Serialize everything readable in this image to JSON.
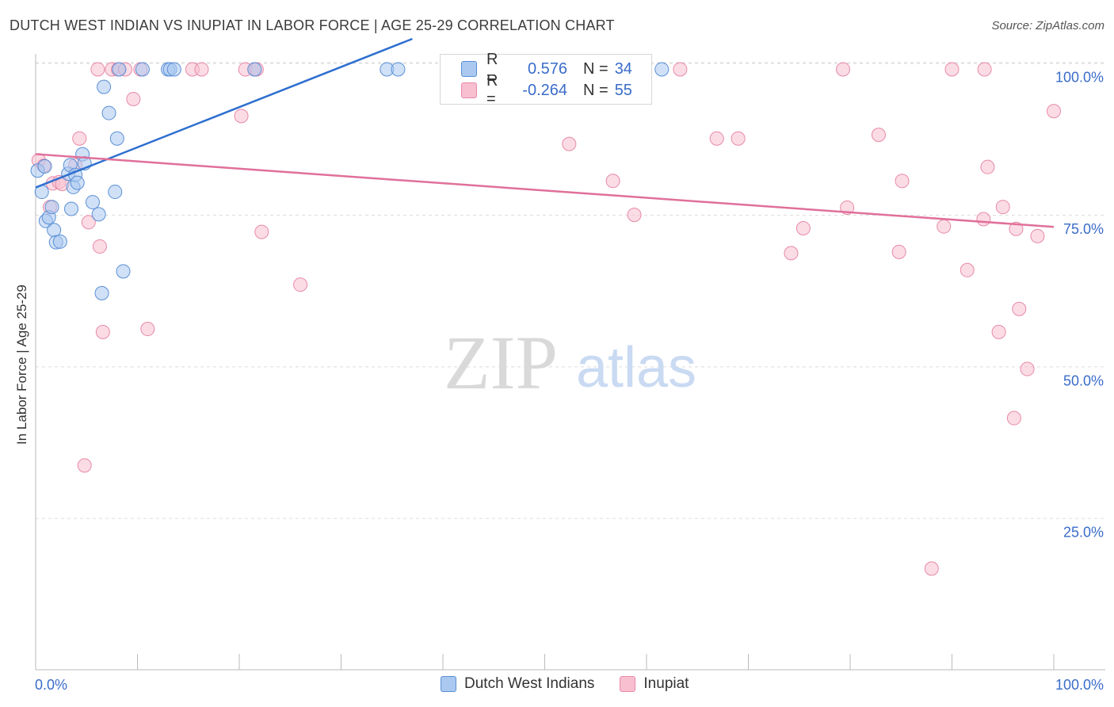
{
  "title": "DUTCH WEST INDIAN VS INUPIAT IN LABOR FORCE | AGE 25-29 CORRELATION CHART",
  "source": "Source: ZipAtlas.com",
  "watermark": {
    "zip": "ZIP",
    "atlas": "atlas"
  },
  "legend": {
    "series1": {
      "r_label": "R =",
      "r_value": "0.576",
      "n_label": "N =",
      "n_value": "34"
    },
    "series2": {
      "r_label": "R =",
      "r_value": "-0.264",
      "n_label": "N =",
      "n_value": "55"
    }
  },
  "colors": {
    "blue_fill": "#aac8f0",
    "blue_stroke": "#5b8fd6",
    "blue_line": "#2e6fcf",
    "pink_fill": "#f7bfd0",
    "pink_stroke": "#e889a8",
    "pink_line": "#e0709a",
    "tick_label": "#3a6cc9",
    "grid": "#dddddd"
  },
  "chart_data": {
    "type": "scatter",
    "title": "DUTCH WEST INDIAN VS INUPIAT IN LABOR FORCE | AGE 25-29 CORRELATION CHART",
    "xlabel": "",
    "ylabel": "In Labor Force | Age 25-29",
    "xlim": [
      0,
      100
    ],
    "ylim": [
      0,
      105
    ],
    "x_tick_labels": [
      "0.0%",
      "100.0%"
    ],
    "y_ticks": [
      {
        "value": 100,
        "label": "100.0%"
      },
      {
        "value": 75,
        "label": "75.0%"
      },
      {
        "value": 50,
        "label": "50.0%"
      },
      {
        "value": 25,
        "label": "25.0%"
      }
    ],
    "series": [
      {
        "name": "Dutch West Indians",
        "color": "blue",
        "trend": {
          "x": [
            0,
            37
          ],
          "y": [
            79.5,
            104.0
          ]
        },
        "points": [
          [
            0.2,
            82.8
          ],
          [
            0.6,
            79.3
          ],
          [
            0.9,
            83.5
          ],
          [
            1.0,
            74.5
          ],
          [
            1.3,
            75.1
          ],
          [
            1.6,
            76.8
          ],
          [
            1.8,
            73.0
          ],
          [
            2.0,
            71.0
          ],
          [
            2.4,
            71.1
          ],
          [
            3.2,
            82.3
          ],
          [
            3.4,
            83.7
          ],
          [
            3.5,
            76.5
          ],
          [
            3.7,
            80.1
          ],
          [
            3.9,
            82.1
          ],
          [
            4.1,
            80.8
          ],
          [
            4.6,
            85.5
          ],
          [
            4.8,
            84.0
          ],
          [
            5.6,
            77.6
          ],
          [
            6.2,
            75.6
          ],
          [
            6.5,
            62.6
          ],
          [
            6.7,
            96.6
          ],
          [
            7.2,
            92.3
          ],
          [
            7.8,
            79.3
          ],
          [
            8.0,
            88.1
          ],
          [
            8.6,
            66.2
          ],
          [
            8.2,
            99.5
          ],
          [
            10.5,
            99.5
          ],
          [
            13.0,
            99.5
          ],
          [
            13.2,
            99.5
          ],
          [
            13.6,
            99.5
          ],
          [
            21.5,
            99.5
          ],
          [
            34.5,
            99.5
          ],
          [
            35.6,
            99.5
          ],
          [
            61.5,
            99.5
          ]
        ]
      },
      {
        "name": "Inupiat",
        "color": "pink",
        "trend": {
          "x": [
            0,
            100
          ],
          "y": [
            85.0,
            73.0
          ]
        },
        "points": [
          [
            0.3,
            84.5
          ],
          [
            0.8,
            83.6
          ],
          [
            1.4,
            76.8
          ],
          [
            1.7,
            80.7
          ],
          [
            2.3,
            80.9
          ],
          [
            2.6,
            80.6
          ],
          [
            3.9,
            83.7
          ],
          [
            4.3,
            88.1
          ],
          [
            4.8,
            34.2
          ],
          [
            5.2,
            74.3
          ],
          [
            6.3,
            70.3
          ],
          [
            6.6,
            56.2
          ],
          [
            6.1,
            99.5
          ],
          [
            7.5,
            99.5
          ],
          [
            8.1,
            99.5
          ],
          [
            8.8,
            99.5
          ],
          [
            9.6,
            94.6
          ],
          [
            10.3,
            99.5
          ],
          [
            11.0,
            56.7
          ],
          [
            15.4,
            99.5
          ],
          [
            16.3,
            99.5
          ],
          [
            20.2,
            91.8
          ],
          [
            20.6,
            99.5
          ],
          [
            21.5,
            99.5
          ],
          [
            22.2,
            72.7
          ],
          [
            21.7,
            99.5
          ],
          [
            26.0,
            64.0
          ],
          [
            52.4,
            87.2
          ],
          [
            56.7,
            81.1
          ],
          [
            58.8,
            75.5
          ],
          [
            63.3,
            99.5
          ],
          [
            66.9,
            88.1
          ],
          [
            69.0,
            88.1
          ],
          [
            74.2,
            69.2
          ],
          [
            75.4,
            73.3
          ],
          [
            79.3,
            99.5
          ],
          [
            79.7,
            76.7
          ],
          [
            82.8,
            88.7
          ],
          [
            84.8,
            69.4
          ],
          [
            85.1,
            81.1
          ],
          [
            88.0,
            17.2
          ],
          [
            89.2,
            73.6
          ],
          [
            90.0,
            99.5
          ],
          [
            91.5,
            66.4
          ],
          [
            93.1,
            74.8
          ],
          [
            93.2,
            99.5
          ],
          [
            93.5,
            83.4
          ],
          [
            94.6,
            56.2
          ],
          [
            95.0,
            76.8
          ],
          [
            96.1,
            42.0
          ],
          [
            96.3,
            73.2
          ],
          [
            96.6,
            60.0
          ],
          [
            97.4,
            50.1
          ],
          [
            98.4,
            72.0
          ],
          [
            100.0,
            92.6
          ]
        ]
      }
    ]
  }
}
